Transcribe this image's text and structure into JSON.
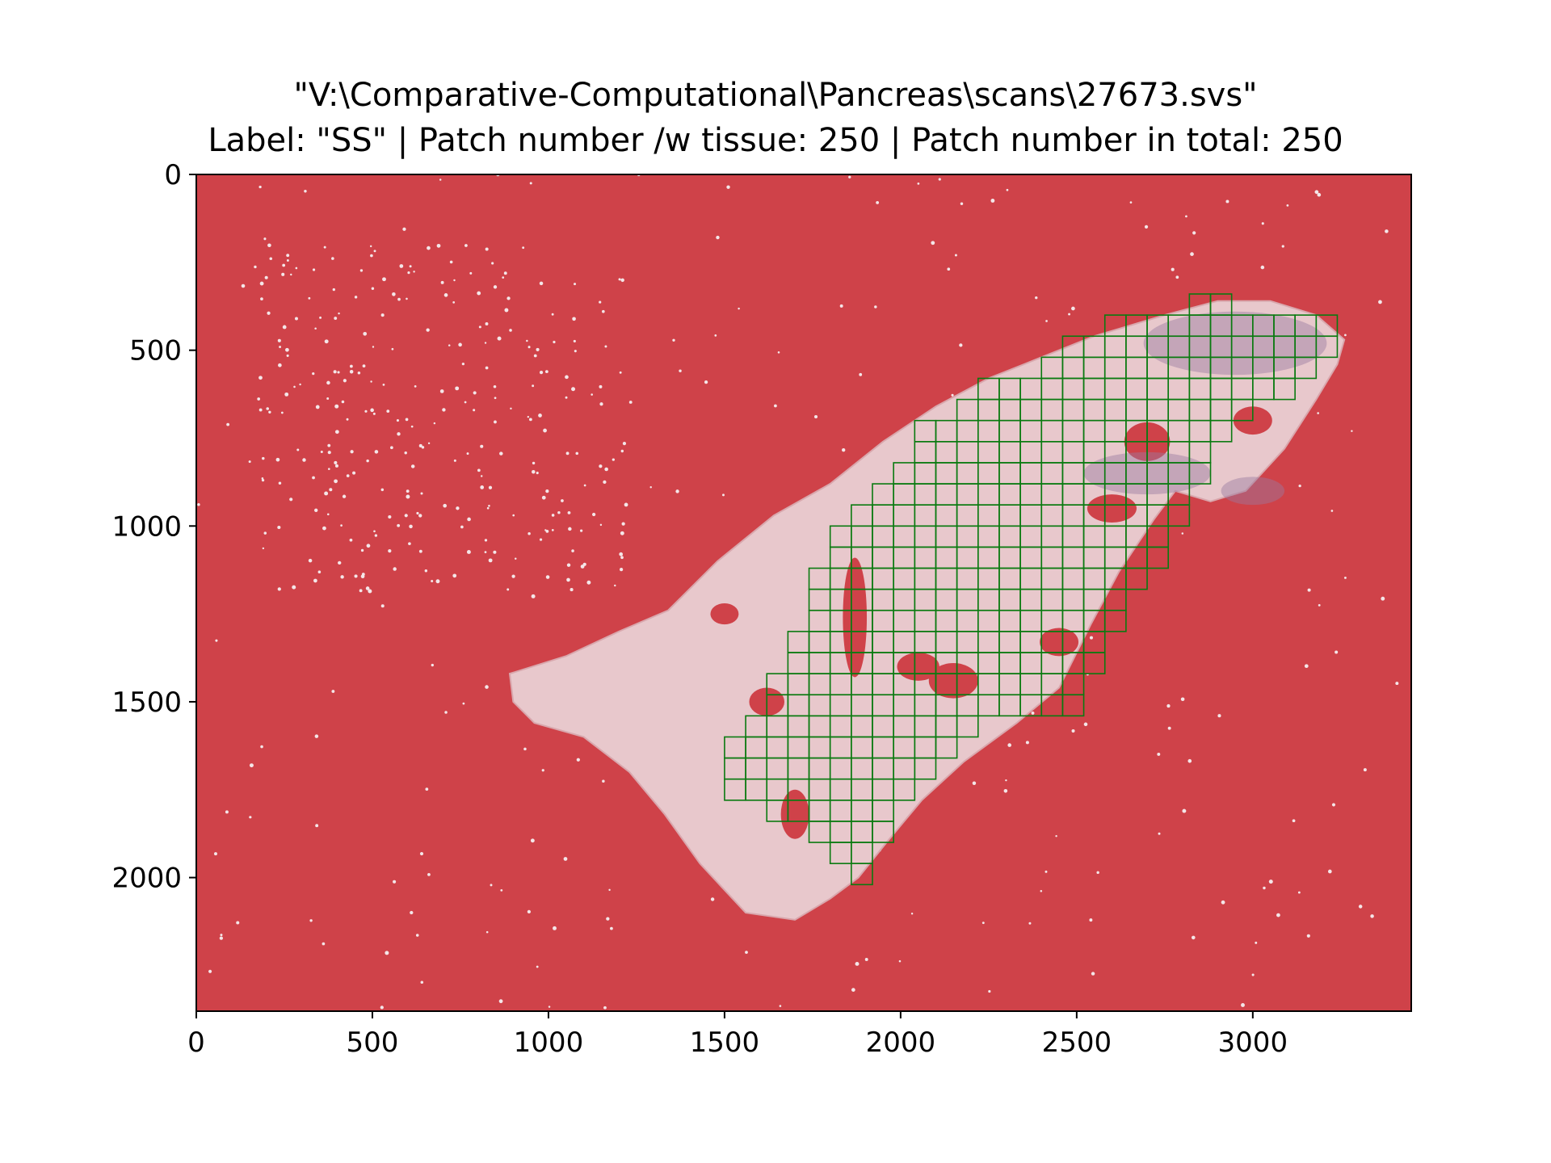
{
  "figure": {
    "title_line1": "\"V:\\Comparative-Computational\\Pancreas\\scans\\27673.svs\"",
    "title_line2": "Label: \"SS\" | Patch number /w tissue: 250 | Patch number in total: 250"
  },
  "image_extent": {
    "x": [
      0,
      3450
    ],
    "y": [
      0,
      2380
    ]
  },
  "axes": {
    "x_ticks": [
      {
        "value": 0,
        "label": "0"
      },
      {
        "value": 500,
        "label": "500"
      },
      {
        "value": 1000,
        "label": "1000"
      },
      {
        "value": 1500,
        "label": "1500"
      },
      {
        "value": 2000,
        "label": "2000"
      },
      {
        "value": 2500,
        "label": "2500"
      },
      {
        "value": 3000,
        "label": "3000"
      }
    ],
    "y_ticks": [
      {
        "value": 0,
        "label": "0"
      },
      {
        "value": 500,
        "label": "500"
      },
      {
        "value": 1000,
        "label": "1000"
      },
      {
        "value": 1500,
        "label": "1500"
      },
      {
        "value": 2000,
        "label": "2000"
      }
    ]
  },
  "colors": {
    "background_mask": "#cf4249",
    "tissue": "#e8c8cc",
    "tissue_dark": "#9a7aa0",
    "patch_outline": "#0a7a10"
  },
  "patch_size": 60
}
